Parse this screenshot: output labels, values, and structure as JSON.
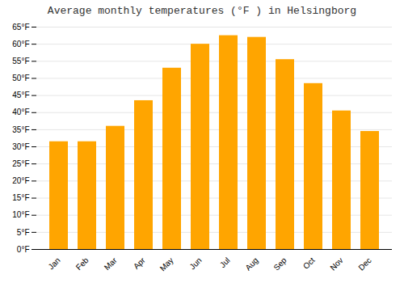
{
  "chart_data": {
    "type": "bar",
    "title": "Average monthly temperatures (°F ) in Helsingborg",
    "categories": [
      "Jan",
      "Feb",
      "Mar",
      "Apr",
      "May",
      "Jun",
      "Jul",
      "Aug",
      "Sep",
      "Oct",
      "Nov",
      "Dec"
    ],
    "values": [
      31.5,
      31.5,
      36,
      43.5,
      53,
      60,
      62.5,
      62,
      55.5,
      48.5,
      40.5,
      34.5
    ],
    "color": "#FFA500",
    "ylim": [
      0,
      65
    ],
    "yticks": [
      {
        "value": 0,
        "label": "0°F"
      },
      {
        "value": 5,
        "label": "5°F"
      },
      {
        "value": 10,
        "label": "10°F"
      },
      {
        "value": 15,
        "label": "15°F"
      },
      {
        "value": 20,
        "label": "20°F"
      },
      {
        "value": 25,
        "label": "25°F"
      },
      {
        "value": 30,
        "label": "30°F"
      },
      {
        "value": 35,
        "label": "35°F"
      },
      {
        "value": 40,
        "label": "40°F"
      },
      {
        "value": 45,
        "label": "45°F"
      },
      {
        "value": 50,
        "label": "50°F"
      },
      {
        "value": 55,
        "label": "55°F"
      },
      {
        "value": 60,
        "label": "60°F"
      },
      {
        "value": 65,
        "label": "65°F"
      }
    ],
    "grid": true
  }
}
